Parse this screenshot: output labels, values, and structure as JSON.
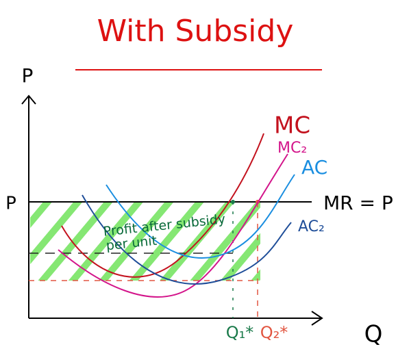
{
  "title": "With Subsidy",
  "axes": {
    "y_label": "P",
    "x_label": "Q",
    "price_label": "P"
  },
  "line_label": "MR = P",
  "curves": {
    "mc": "MC",
    "mc2": "MC₂",
    "ac": "AC",
    "ac2": "AC₂"
  },
  "area_label": {
    "line1": "Profit after subsidy",
    "line2": "per unit"
  },
  "quantities": {
    "q1": "Q₁*",
    "q2": "Q₂*"
  }
}
